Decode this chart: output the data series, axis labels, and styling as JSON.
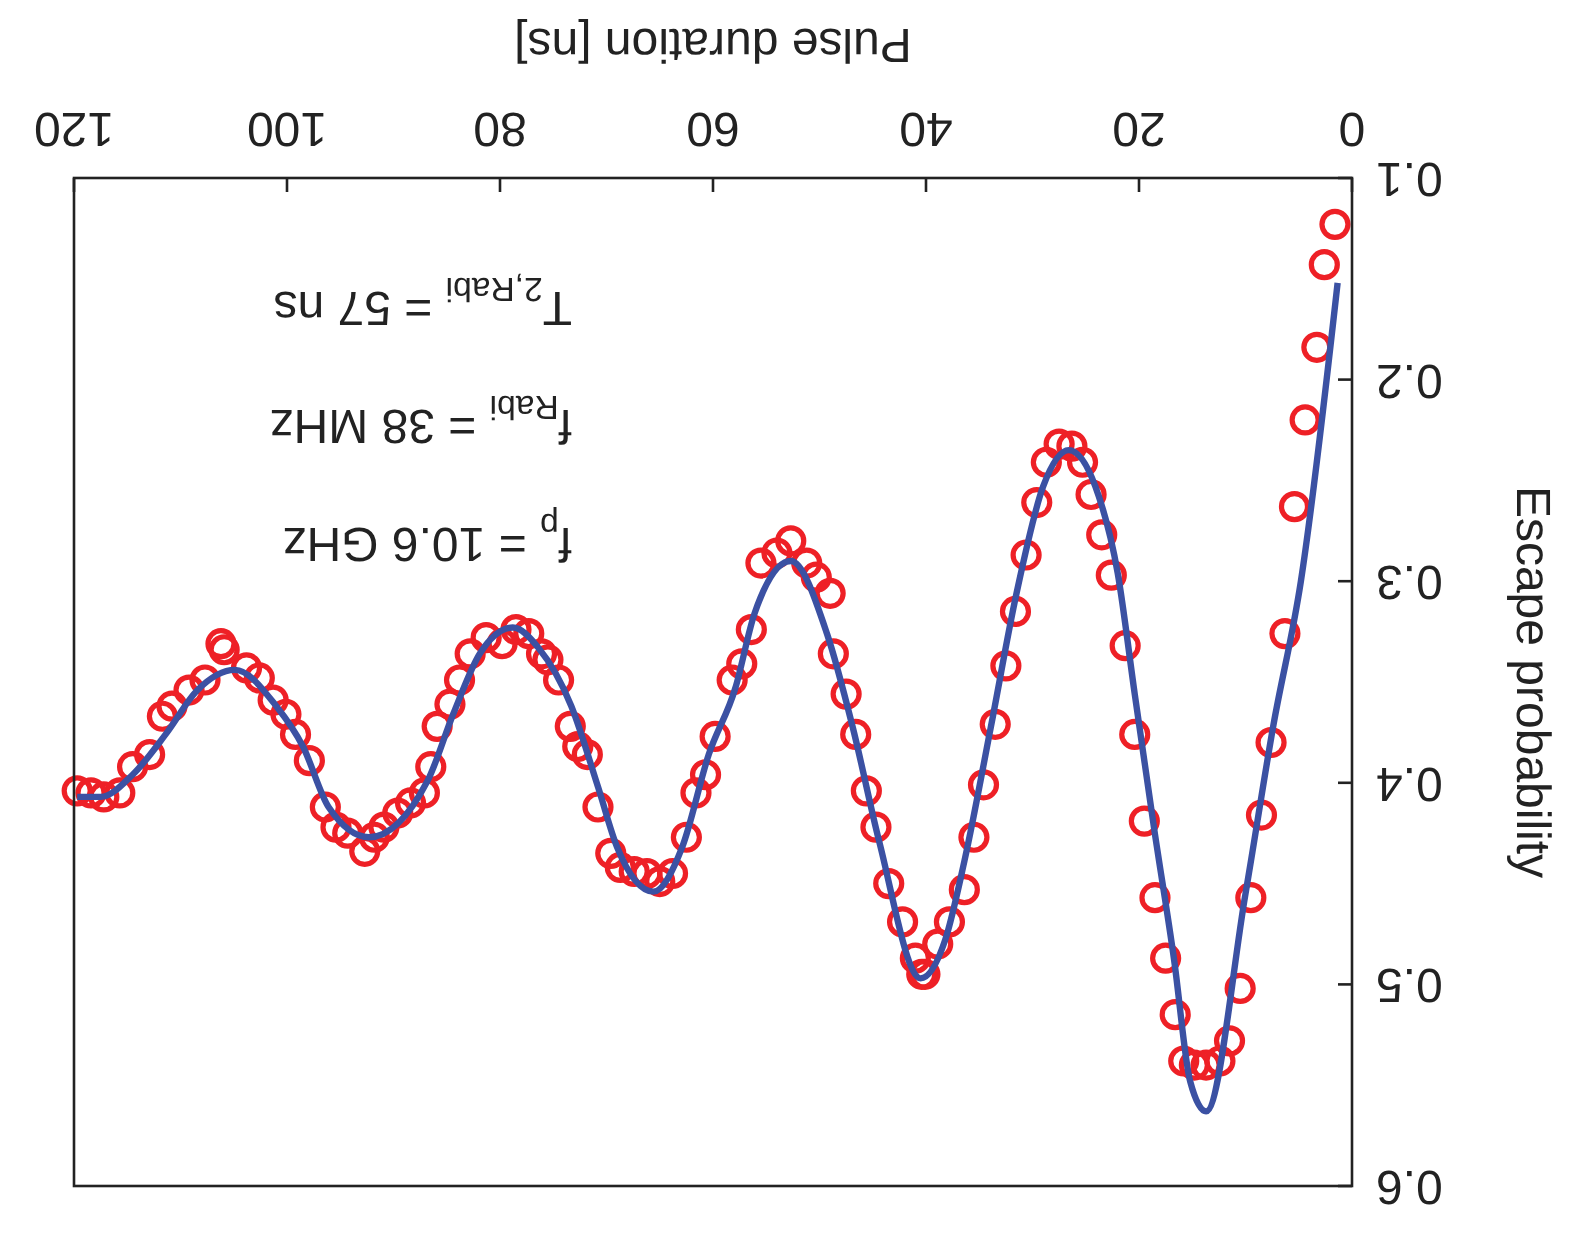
{
  "chart_data": {
    "type": "scatter",
    "xlabel": "Pulse duration [ns]",
    "ylabel": "Escape probability",
    "xlim": [
      120,
      0
    ],
    "ylim": [
      0.6,
      0.1
    ],
    "xticks": [
      0,
      20,
      40,
      60,
      80,
      100,
      120
    ],
    "yticks": [
      0.1,
      0.2,
      0.3,
      0.4,
      0.5,
      0.6
    ],
    "grid": false,
    "annotations": [
      "f$_{p}$ = 10.6 GHz",
      "f$_{Rabi}$ = 38 MHz",
      "T$_{2,Rabi}$ = 57 ns"
    ],
    "series": [
      {
        "color": "#ee2026",
        "marker": "circle",
        "x": [
          1.6,
          2.6,
          3.3,
          4.4,
          5.4,
          6.3,
          7.6,
          8.5,
          9.5,
          10.5,
          11.5,
          12.4,
          13.7,
          14.8,
          15.8,
          16.6,
          17.5,
          18.5,
          19.5,
          20.4,
          21.3,
          22.6,
          23.5,
          24.5,
          25.3,
          26.3,
          27.5,
          28.7,
          29.6,
          30.6,
          31.6,
          32.5,
          33.5,
          34.6,
          35.5,
          36.4,
          37.8,
          38.9,
          40.1,
          40.4,
          41.0,
          42.2,
          43.5,
          44.7,
          45.6,
          46.6,
          47.5,
          48.7,
          49.0,
          50.3,
          51.2,
          52.7,
          54.0,
          55.5,
          56.4,
          57.3,
          58.2,
          59.8,
          60.7,
          61.6,
          62.5,
          63.8,
          65.0,
          66.2,
          67.4,
          68.7,
          69.6,
          70.8,
          71.8,
          72.7,
          73.4,
          74.5,
          75.5,
          76.1,
          77.3,
          78.5,
          79.8,
          81.3,
          82.8,
          83.8,
          84.7,
          85.9,
          86.5,
          87.1,
          88.4,
          89.6,
          90.9,
          91.8,
          92.7,
          94.3,
          95.4,
          96.4,
          97.9,
          99.2,
          100.1,
          101.3,
          102.6,
          103.8,
          105.9,
          106.2,
          107.7,
          109.2,
          110.8,
          111.7,
          112.9,
          114.5,
          115.7,
          117.2,
          118.4,
          119.7
        ],
        "values": [
          0.123,
          0.143,
          0.184,
          0.22,
          0.263,
          0.326,
          0.38,
          0.416,
          0.457,
          0.502,
          0.528,
          0.538,
          0.54,
          0.54,
          0.538,
          0.515,
          0.487,
          0.457,
          0.419,
          0.376,
          0.332,
          0.297,
          0.277,
          0.257,
          0.241,
          0.233,
          0.232,
          0.241,
          0.261,
          0.287,
          0.315,
          0.342,
          0.371,
          0.401,
          0.427,
          0.453,
          0.469,
          0.48,
          0.495,
          0.495,
          0.487,
          0.469,
          0.45,
          0.422,
          0.404,
          0.376,
          0.356,
          0.336,
          0.306,
          0.298,
          0.291,
          0.28,
          0.286,
          0.291,
          0.324,
          0.341,
          0.349,
          0.377,
          0.396,
          0.405,
          0.427,
          0.445,
          0.449,
          0.445,
          0.444,
          0.442,
          0.435,
          0.412,
          0.386,
          0.382,
          0.372,
          0.349,
          0.339,
          0.336,
          0.326,
          0.324,
          0.331,
          0.328,
          0.336,
          0.349,
          0.361,
          0.372,
          0.392,
          0.405,
          0.41,
          0.415,
          0.422,
          0.427,
          0.434,
          0.425,
          0.422,
          0.412,
          0.389,
          0.376,
          0.366,
          0.359,
          0.348,
          0.343,
          0.334,
          0.331,
          0.349,
          0.354,
          0.362,
          0.367,
          0.386,
          0.392,
          0.405,
          0.407,
          0.405,
          0.404
        ]
      },
      {
        "type": "line",
        "color": "#3b51a3",
        "marker": "none",
        "line_style": "solid",
        "x": [
          1.35,
          4.8,
          7.4,
          10.0,
          13.7,
          15.2,
          16.7,
          18.6,
          20.4,
          22.0,
          24.1,
          26.6,
          29.0,
          31.5,
          33.9,
          36.4,
          38.2,
          40.5,
          44.4,
          46.9,
          49.3,
          52.7,
          56.1,
          57.9,
          60.4,
          62.9,
          65.6,
          69.0,
          70.8,
          73.3,
          76.4,
          78.8,
          81.9,
          84.4,
          86.8,
          92.3,
          96.1,
          98.5,
          101.0,
          104.9,
          108.4,
          111.4,
          114.5,
          117.5,
          119.7
        ],
        "values": [
          0.152,
          0.3,
          0.372,
          0.455,
          0.563,
          0.548,
          0.488,
          0.422,
          0.356,
          0.296,
          0.253,
          0.235,
          0.253,
          0.306,
          0.372,
          0.439,
          0.478,
          0.497,
          0.429,
          0.372,
          0.326,
          0.29,
          0.316,
          0.353,
          0.386,
          0.432,
          0.454,
          0.432,
          0.402,
          0.362,
          0.333,
          0.323,
          0.336,
          0.366,
          0.399,
          0.427,
          0.412,
          0.382,
          0.362,
          0.344,
          0.354,
          0.376,
          0.396,
          0.407,
          0.407
        ]
      }
    ]
  }
}
